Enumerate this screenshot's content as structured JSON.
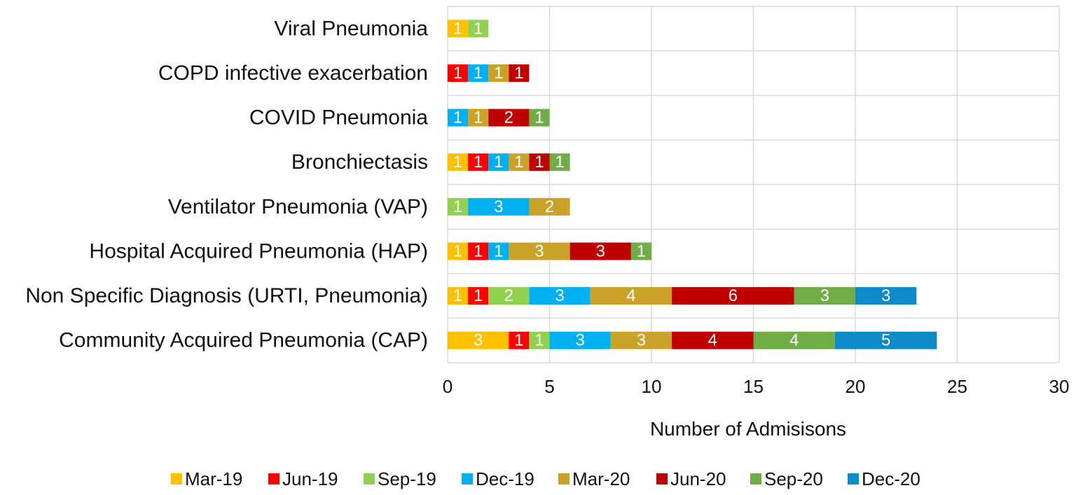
{
  "chart_data": {
    "type": "bar",
    "orientation": "horizontal",
    "stacked": true,
    "title": "",
    "xlabel": "Number of Admisisons",
    "ylabel": "",
    "xlim": [
      0,
      30
    ],
    "x_ticks": [
      0,
      5,
      10,
      15,
      20,
      25,
      30
    ],
    "grid": true,
    "legend_position": "bottom",
    "categories": [
      "Viral Pneumonia",
      "COPD infective exacerbation",
      "COVID Pneumonia",
      "Bronchiectasis",
      "Ventilator Pneumonia (VAP)",
      "Hospital Acquired Pneumonia (HAP)",
      "Non Specific Diagnosis (URTI, Pneumonia)",
      "Community Acquired Pneumonia (CAP)"
    ],
    "series": [
      {
        "name": "Mar-19",
        "color": "#FFC000",
        "values": [
          1,
          0,
          0,
          1,
          0,
          1,
          1,
          3
        ]
      },
      {
        "name": "Jun-19",
        "color": "#FF0000",
        "values": [
          0,
          1,
          0,
          1,
          0,
          1,
          1,
          1
        ]
      },
      {
        "name": "Sep-19",
        "color": "#92D050",
        "values": [
          1,
          0,
          0,
          0,
          1,
          0,
          2,
          1
        ]
      },
      {
        "name": "Dec-19",
        "color": "#00B0F0",
        "values": [
          0,
          1,
          1,
          1,
          3,
          1,
          3,
          3
        ]
      },
      {
        "name": "Mar-20",
        "color": "#C9A227",
        "values": [
          0,
          1,
          1,
          1,
          2,
          3,
          4,
          3
        ]
      },
      {
        "name": "Jun-20",
        "color": "#C00000",
        "values": [
          0,
          1,
          2,
          1,
          0,
          3,
          6,
          4
        ]
      },
      {
        "name": "Sep-20",
        "color": "#70AD47",
        "values": [
          0,
          0,
          1,
          1,
          0,
          1,
          3,
          4
        ]
      },
      {
        "name": "Dec-20",
        "color": "#0E8AC8",
        "values": [
          0,
          0,
          0,
          0,
          0,
          0,
          3,
          5
        ]
      }
    ]
  }
}
